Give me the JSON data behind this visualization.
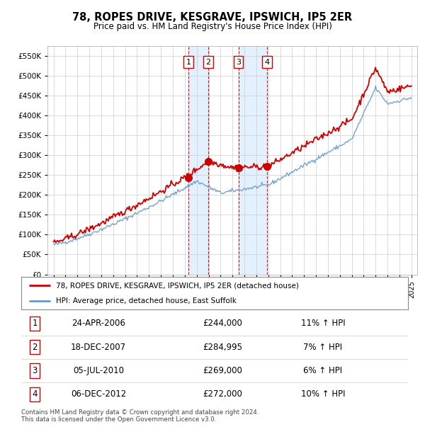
{
  "title": "78, ROPES DRIVE, KESGRAVE, IPSWICH, IP5 2ER",
  "subtitle": "Price paid vs. HM Land Registry's House Price Index (HPI)",
  "ylim": [
    0,
    575000
  ],
  "yticks": [
    0,
    50000,
    100000,
    150000,
    200000,
    250000,
    300000,
    350000,
    400000,
    450000,
    500000,
    550000
  ],
  "xlim_start": 1994.5,
  "xlim_end": 2025.5,
  "purchase_dates": [
    2006.31,
    2007.96,
    2010.5,
    2012.92
  ],
  "purchase_prices": [
    244000,
    284995,
    269000,
    272000
  ],
  "purchase_labels": [
    "1",
    "2",
    "3",
    "4"
  ],
  "red_line_color": "#cc0000",
  "blue_line_color": "#6699cc",
  "legend_red_label": "78, ROPES DRIVE, KESGRAVE, IPSWICH, IP5 2ER (detached house)",
  "legend_blue_label": "HPI: Average price, detached house, East Suffolk",
  "table_entries": [
    {
      "num": "1",
      "date": "24-APR-2006",
      "price": "£244,000",
      "hpi": "11% ↑ HPI"
    },
    {
      "num": "2",
      "date": "18-DEC-2007",
      "price": "£284,995",
      "hpi": "7% ↑ HPI"
    },
    {
      "num": "3",
      "date": "05-JUL-2010",
      "price": "£269,000",
      "hpi": "6% ↑ HPI"
    },
    {
      "num": "4",
      "date": "06-DEC-2012",
      "price": "£272,000",
      "hpi": "10% ↑ HPI"
    }
  ],
  "footer": "Contains HM Land Registry data © Crown copyright and database right 2024.\nThis data is licensed under the Open Government Licence v3.0.",
  "grid_color": "#cccccc",
  "plot_bg": "#ffffff",
  "shade_color": "#ddeeff"
}
